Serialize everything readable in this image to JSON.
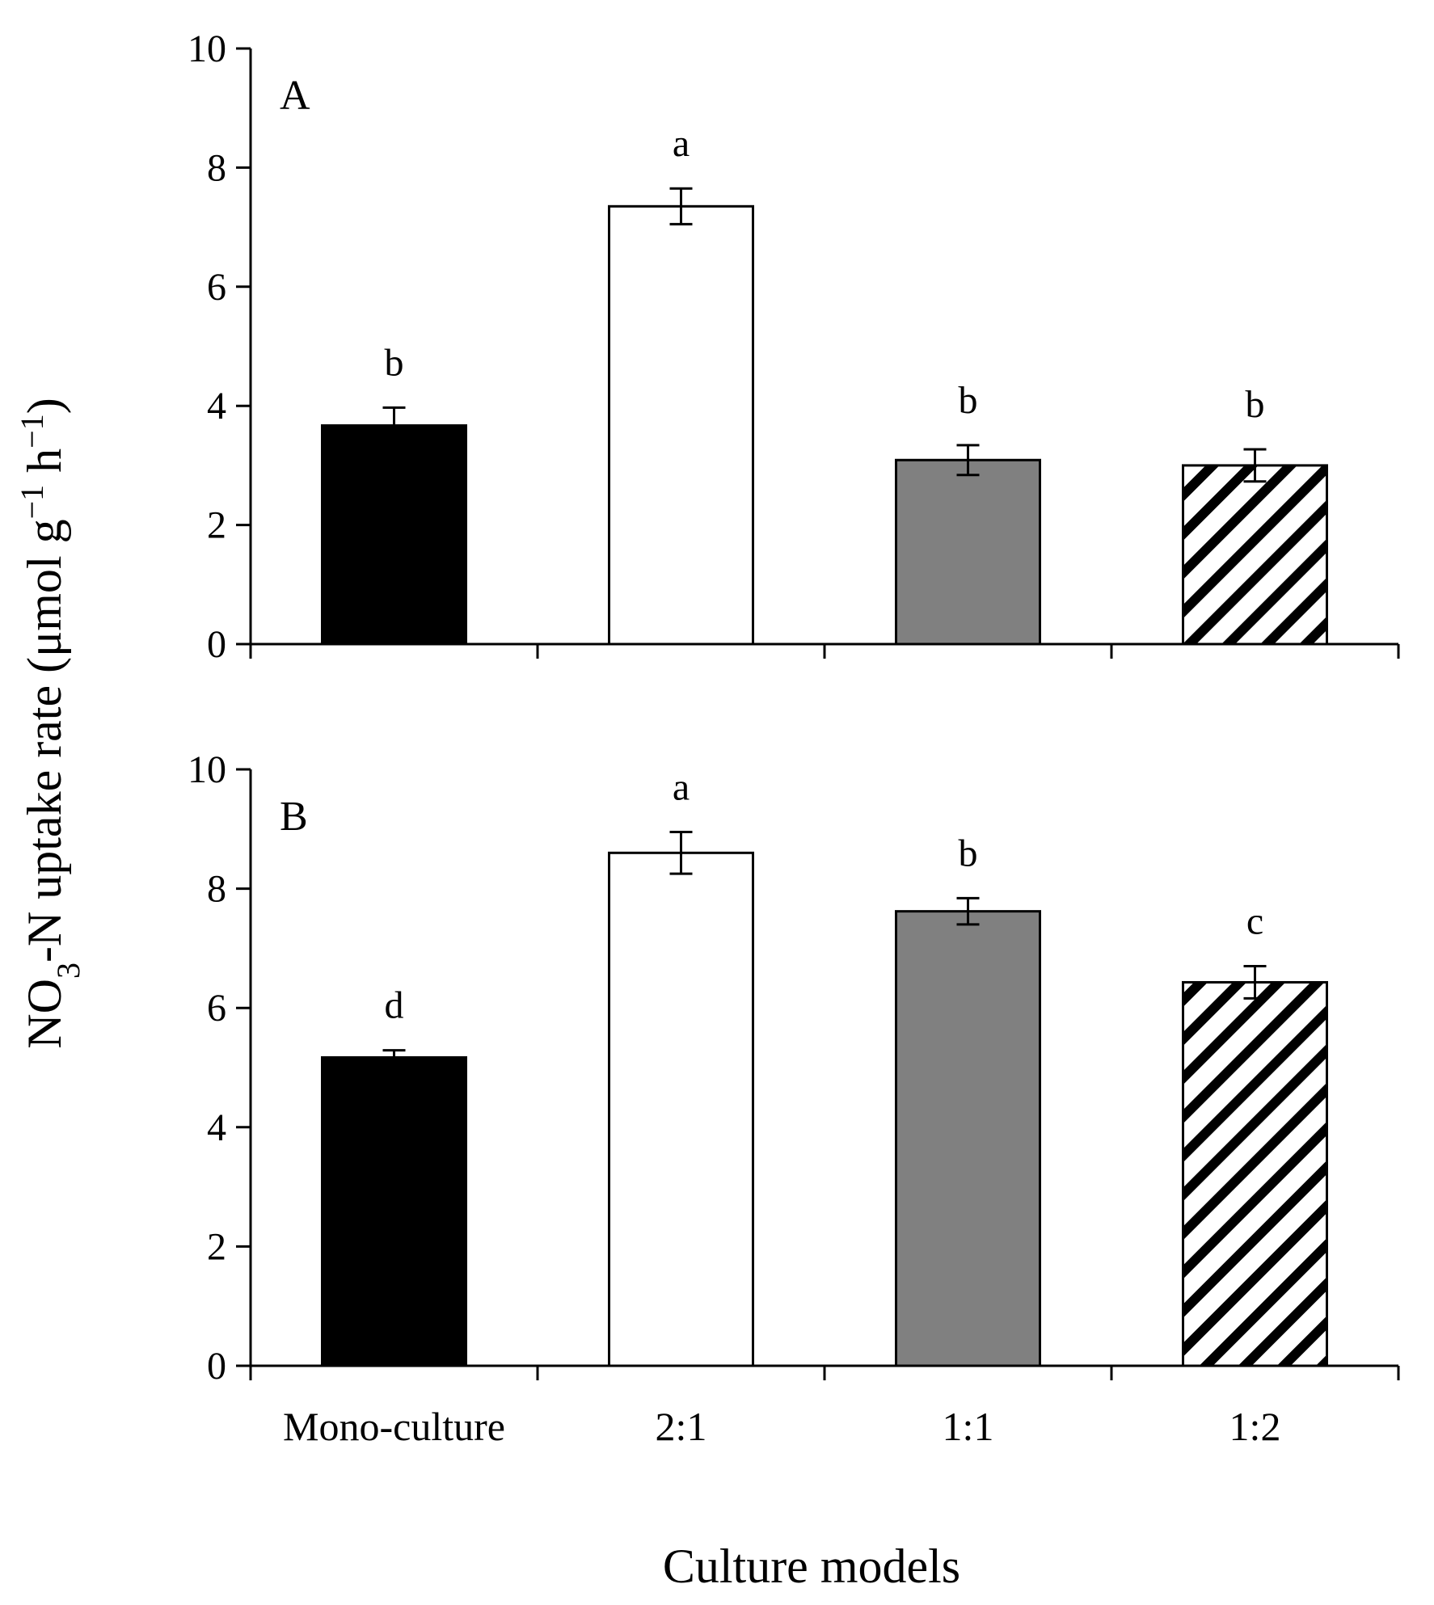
{
  "chart_data": [
    {
      "type": "bar",
      "panel_label": "A",
      "categories": [
        "Mono-culture",
        "2:1",
        "1:1",
        "1:2"
      ],
      "values": [
        3.67,
        7.35,
        3.09,
        3.0
      ],
      "errors": [
        0.3,
        0.3,
        0.25,
        0.27
      ],
      "significance_letters": [
        "b",
        "a",
        "b",
        "b"
      ],
      "fills": [
        "black",
        "white",
        "gray",
        "hatched"
      ],
      "ylim": [
        0,
        10
      ],
      "yticks": [
        0,
        2,
        4,
        6,
        8,
        10
      ]
    },
    {
      "type": "bar",
      "panel_label": "B",
      "categories": [
        "Mono-culture",
        "2:1",
        "1:1",
        "1:2"
      ],
      "values": [
        5.17,
        8.6,
        7.62,
        6.43
      ],
      "errors": [
        0.12,
        0.35,
        0.22,
        0.27
      ],
      "significance_letters": [
        "d",
        "a",
        "b",
        "c"
      ],
      "fills": [
        "black",
        "white",
        "gray",
        "hatched"
      ],
      "ylim": [
        0,
        10
      ],
      "yticks": [
        0,
        2,
        4,
        6,
        8,
        10
      ]
    }
  ],
  "axes": {
    "xlabel": "Culture models",
    "ylabel_parts": [
      "NO",
      "3",
      "-N uptake rate (μmol g",
      "−1",
      " h",
      "−1",
      ")"
    ]
  },
  "colors": {
    "black": "#000000",
    "white": "#ffffff",
    "gray": "#808080",
    "axis": "#000000"
  }
}
